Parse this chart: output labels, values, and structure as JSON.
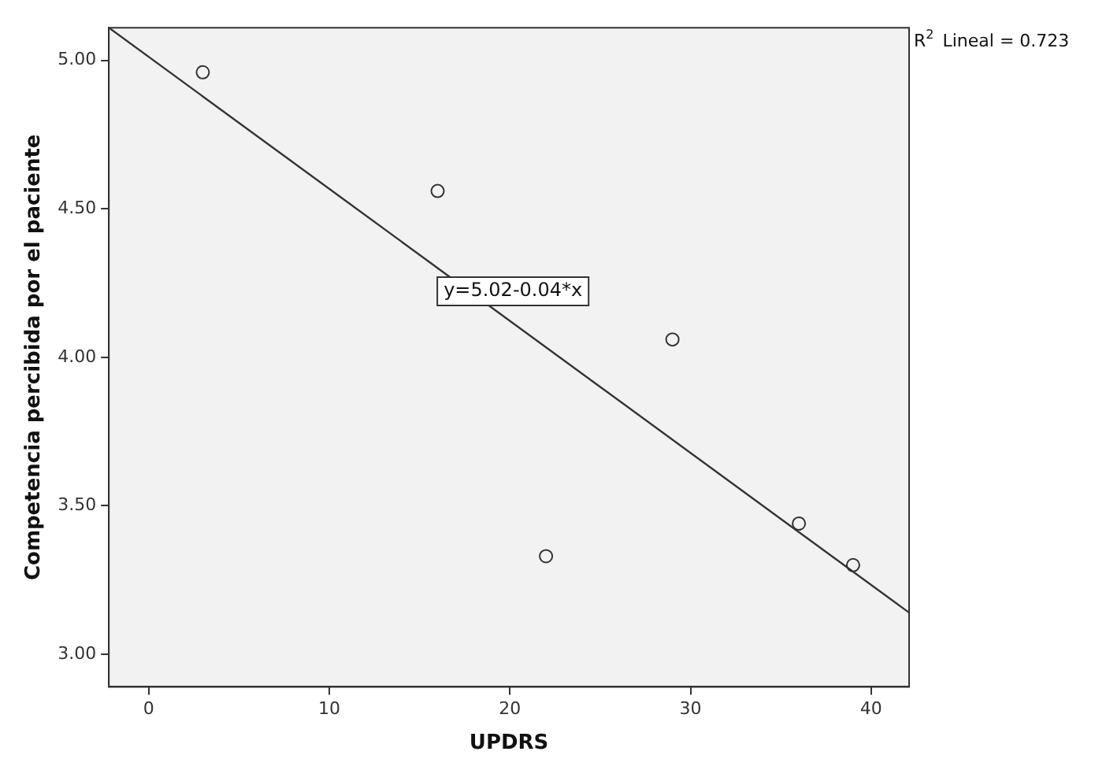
{
  "chart_data": {
    "type": "scatter",
    "xlabel": "UPDRS",
    "ylabel": "Competencia percibida por el paciente",
    "xlim": [
      -2.2,
      42.1
    ],
    "xticks": [
      0,
      10,
      20,
      30,
      40
    ],
    "ylim": [
      2.89,
      5.11
    ],
    "yticks": [
      {
        "value": 3,
        "label": "3.00"
      },
      {
        "value": 3.5,
        "label": "3.50"
      },
      {
        "value": 4,
        "label": "4.00"
      },
      {
        "value": 4.5,
        "label": "4.50"
      },
      {
        "value": 5,
        "label": "5.00"
      }
    ],
    "grid": false,
    "legend": false,
    "series": [
      {
        "type": "scatter",
        "color": "#333333",
        "marker": "circle",
        "x": [
          3,
          16,
          22,
          29,
          36,
          39
        ],
        "values": [
          4.96,
          4.56,
          3.33,
          4.06,
          3.44,
          3.3
        ]
      },
      {
        "type": "line",
        "color": "#333333",
        "marker": "none",
        "line_style": "solid",
        "x": [
          -2.2,
          42.1
        ],
        "values": [
          5.11,
          3.14
        ]
      }
    ],
    "annotations": [
      "y=5.02-0.04*x",
      "R$^{2}$ Lineal = 0.723"
    ]
  }
}
